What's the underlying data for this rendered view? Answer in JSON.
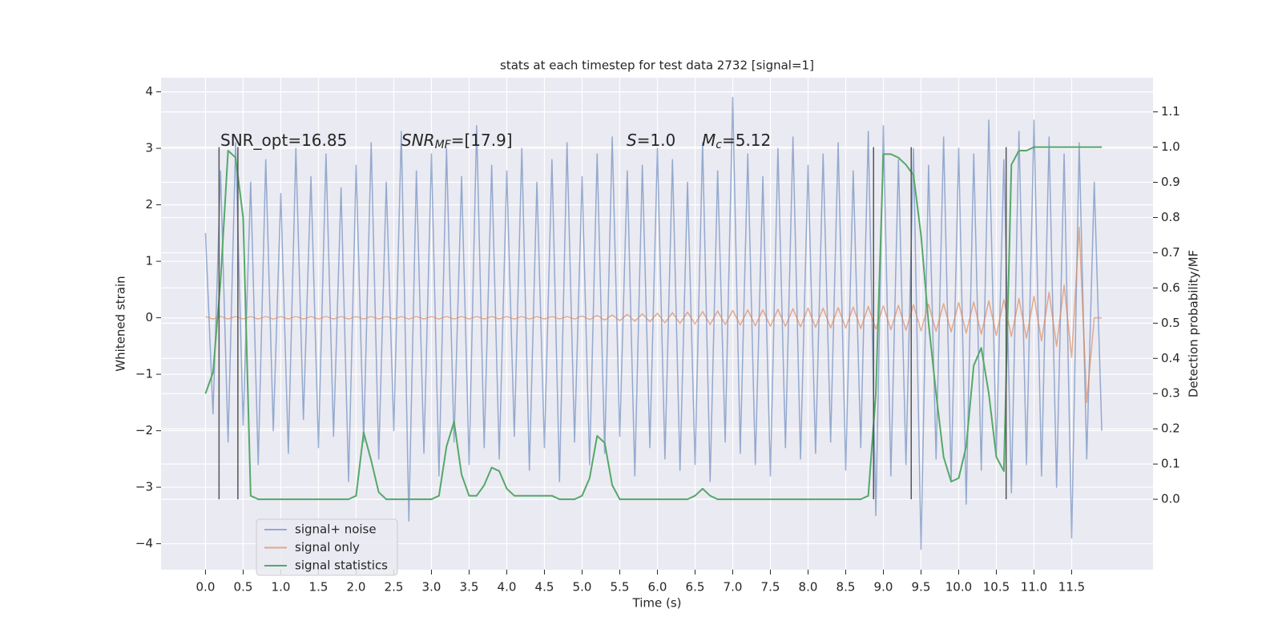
{
  "chart_data": {
    "type": "line",
    "title": "stats at each timestep for test data 2732 [signal=1]",
    "x_label": "Time (s)",
    "y_label": "Whitened strain",
    "y2_label": "Detection probability/MF",
    "xlim": [
      -0.59,
      12.58
    ],
    "ylim": [
      -4.46,
      4.25
    ],
    "y2lim": [
      -0.2,
      1.197
    ],
    "xticks": [
      {
        "value": 0,
        "label": "0.0"
      },
      0.5,
      {
        "value": 1,
        "label": "1.0"
      },
      1.5,
      {
        "value": 2,
        "label": "2.0"
      },
      2.5,
      {
        "value": 3,
        "label": "3.0"
      },
      3.5,
      {
        "value": 4,
        "label": "4.0"
      },
      4.5,
      {
        "value": 5,
        "label": "5.0"
      },
      5.5,
      {
        "value": 6,
        "label": "6.0"
      },
      6.5,
      {
        "value": 7,
        "label": "7.0"
      },
      7.5,
      {
        "value": 8,
        "label": "8.0"
      },
      8.5,
      {
        "value": 9,
        "label": "9.0"
      },
      9.5,
      {
        "value": 10,
        "label": "10.0"
      },
      10.5,
      {
        "value": 11,
        "label": "11.0"
      },
      11.5
    ],
    "yticks": [
      {
        "value": -4,
        "label": "−4"
      },
      {
        "value": -3,
        "label": "−3"
      },
      {
        "value": -2,
        "label": "−2"
      },
      {
        "value": -1,
        "label": "−1"
      },
      0,
      1,
      2,
      3,
      4
    ],
    "y2ticks": [
      {
        "value": 0,
        "label": "0.0"
      },
      0.1,
      0.2,
      0.3,
      0.4,
      0.5,
      0.6,
      0.7,
      0.8,
      0.9,
      {
        "value": 1,
        "label": "1.0"
      },
      1.1
    ],
    "grid": true,
    "legend": "lower left",
    "x": [
      0,
      0.1,
      0.2,
      0.3,
      0.4,
      0.5,
      0.6,
      0.7,
      0.8,
      0.9,
      1,
      1.1,
      1.2,
      1.3,
      1.4,
      1.5,
      1.6,
      1.7,
      1.8,
      1.9,
      2,
      2.1,
      2.2,
      2.3,
      2.4,
      2.5,
      2.6,
      2.7,
      2.8,
      2.9,
      3,
      3.1,
      3.2,
      3.3,
      3.4,
      3.5,
      3.6,
      3.7,
      3.8,
      3.9,
      4,
      4.1,
      4.2,
      4.3,
      4.4,
      4.5,
      4.6,
      4.7,
      4.8,
      4.9,
      5,
      5.1,
      5.2,
      5.3,
      5.4,
      5.5,
      5.6,
      5.7,
      5.8,
      5.9,
      6,
      6.1,
      6.2,
      6.3,
      6.4,
      6.5,
      6.6,
      6.7,
      6.8,
      6.9,
      7,
      7.1,
      7.2,
      7.3,
      7.4,
      7.5,
      7.6,
      7.7,
      7.8,
      7.9,
      8,
      8.1,
      8.2,
      8.3,
      8.4,
      8.5,
      8.6,
      8.7,
      8.8,
      8.9,
      9,
      9.1,
      9.2,
      9.3,
      9.4,
      9.5,
      9.6,
      9.7,
      9.8,
      9.9,
      10,
      10.1,
      10.2,
      10.3,
      10.4,
      10.5,
      10.6,
      10.7,
      10.8,
      10.9,
      11,
      11.1,
      11.2,
      11.3,
      11.4,
      11.5,
      11.6,
      11.7,
      11.8,
      11.9
    ],
    "series": [
      {
        "name": "signal+ noise",
        "color": "#4c72b0",
        "values": [
          1.5,
          -1.7,
          2.6,
          -2.2,
          3.1,
          -1.9,
          2.4,
          -2.6,
          2.8,
          -2.0,
          2.2,
          -2.4,
          3.0,
          -1.8,
          2.5,
          -2.3,
          2.9,
          -2.1,
          2.3,
          -2.9,
          2.7,
          -2.2,
          3.1,
          -2.5,
          2.4,
          -2.0,
          3.3,
          -3.6,
          2.6,
          -2.4,
          2.9,
          -2.8,
          3.0,
          -2.2,
          2.5,
          -2.6,
          3.4,
          -2.3,
          2.7,
          -2.5,
          2.6,
          -2.1,
          3.0,
          -2.7,
          2.4,
          -2.3,
          2.8,
          -2.9,
          3.1,
          -2.2,
          2.5,
          -2.6,
          2.9,
          -2.4,
          3.2,
          -2.1,
          2.6,
          -2.8,
          2.7,
          -2.3,
          3.0,
          -2.5,
          2.8,
          -2.7,
          2.4,
          -2.6,
          3.1,
          -2.9,
          2.6,
          -2.2,
          3.9,
          -2.4,
          2.9,
          -2.6,
          2.5,
          -2.8,
          3.0,
          -2.3,
          3.2,
          -2.5,
          2.7,
          -2.4,
          2.9,
          -2.2,
          3.1,
          -2.7,
          2.6,
          -2.3,
          3.3,
          -3.5,
          3.4,
          -2.8,
          2.8,
          -2.6,
          3.0,
          -4.1,
          2.7,
          -2.5,
          3.2,
          -2.9,
          3.0,
          -3.3,
          2.9,
          -2.7,
          3.5,
          -2.4,
          2.8,
          -3.1,
          3.3,
          -2.6,
          3.5,
          -2.8,
          3.2,
          -3.0,
          2.9,
          -3.9,
          3.1,
          -2.5,
          2.4,
          -2.0
        ]
      },
      {
        "name": "signal only",
        "color": "#dd8452",
        "values": [
          0.02,
          -0.02,
          0.02,
          -0.02,
          0.02,
          -0.02,
          0.02,
          -0.02,
          0.02,
          -0.02,
          0.02,
          -0.02,
          0.02,
          -0.02,
          0.02,
          -0.02,
          0.02,
          -0.02,
          0.02,
          -0.02,
          0.02,
          -0.02,
          0.02,
          -0.02,
          0.02,
          -0.02,
          0.02,
          -0.02,
          0.02,
          -0.02,
          0.02,
          -0.02,
          0.02,
          -0.02,
          0.02,
          -0.02,
          0.02,
          -0.02,
          0.02,
          -0.02,
          0.02,
          -0.02,
          0.02,
          -0.02,
          0.02,
          -0.02,
          0.02,
          -0.02,
          0.02,
          -0.02,
          0.03,
          -0.03,
          0.04,
          -0.04,
          0.05,
          -0.05,
          0.06,
          -0.06,
          0.07,
          -0.07,
          0.08,
          -0.09,
          0.09,
          -0.1,
          0.1,
          -0.11,
          0.11,
          -0.12,
          0.12,
          -0.12,
          0.13,
          -0.13,
          0.14,
          -0.14,
          0.14,
          -0.15,
          0.15,
          -0.15,
          0.16,
          -0.16,
          0.17,
          -0.17,
          0.17,
          -0.18,
          0.18,
          -0.18,
          0.19,
          -0.19,
          0.2,
          -0.2,
          0.21,
          -0.21,
          0.22,
          -0.22,
          0.23,
          -0.23,
          0.24,
          -0.24,
          0.25,
          -0.25,
          0.27,
          -0.27,
          0.28,
          -0.29,
          0.3,
          -0.31,
          0.32,
          -0.33,
          0.34,
          -0.36,
          0.38,
          -0.41,
          0.45,
          -0.5,
          0.58,
          -0.7,
          1.6,
          -1.5,
          0.0,
          0.0
        ]
      },
      {
        "name": "signal statistics",
        "color": "#55a868",
        "axis": "y2",
        "values": [
          0.3,
          0.36,
          0.62,
          0.99,
          0.97,
          0.8,
          0.01,
          0.0,
          0.0,
          0.0,
          0.0,
          0.0,
          0.0,
          0.0,
          0.0,
          0.0,
          0.0,
          0.0,
          0.0,
          0.0,
          0.01,
          0.19,
          0.11,
          0.02,
          0.0,
          0.0,
          0.0,
          0.0,
          0.0,
          0.0,
          0.0,
          0.01,
          0.15,
          0.22,
          0.07,
          0.01,
          0.01,
          0.04,
          0.09,
          0.08,
          0.03,
          0.01,
          0.01,
          0.01,
          0.01,
          0.01,
          0.01,
          0.0,
          0.0,
          0.0,
          0.01,
          0.06,
          0.18,
          0.16,
          0.04,
          0.0,
          0.0,
          0.0,
          0.0,
          0.0,
          0.0,
          0.0,
          0.0,
          0.0,
          0.0,
          0.01,
          0.03,
          0.01,
          0.0,
          0.0,
          0.0,
          0.0,
          0.0,
          0.0,
          0.0,
          0.0,
          0.0,
          0.0,
          0.0,
          0.0,
          0.0,
          0.0,
          0.0,
          0.0,
          0.0,
          0.0,
          0.0,
          0.0,
          0.01,
          0.3,
          0.98,
          0.98,
          0.97,
          0.95,
          0.92,
          0.75,
          0.5,
          0.3,
          0.12,
          0.05,
          0.06,
          0.15,
          0.38,
          0.43,
          0.3,
          0.12,
          0.08,
          0.95,
          0.99,
          0.99,
          1.0,
          1.0,
          1.0,
          1.0,
          1.0,
          1.0,
          1.0,
          1.0,
          1.0,
          1.0
        ]
      }
    ],
    "vlines": {
      "x": [
        0.18,
        0.43,
        8.87,
        9.37,
        10.63
      ],
      "y2": [
        0,
        1
      ],
      "color": "#555555"
    },
    "annotations": [
      [
        {
          "text": "SNR_opt=16.85"
        }
      ],
      [
        {
          "text": "SNR",
          "italic": true
        },
        {
          "text": "MF",
          "italic": true,
          "sub": true
        },
        {
          "text": "=[17.9]"
        }
      ],
      [
        {
          "text": "S",
          "italic": true
        },
        {
          "text": "=1.0"
        }
      ],
      [
        {
          "text": "M",
          "italic": true
        },
        {
          "text": "c",
          "italic": true,
          "sub": true
        },
        {
          "text": "=5.12"
        }
      ]
    ]
  }
}
